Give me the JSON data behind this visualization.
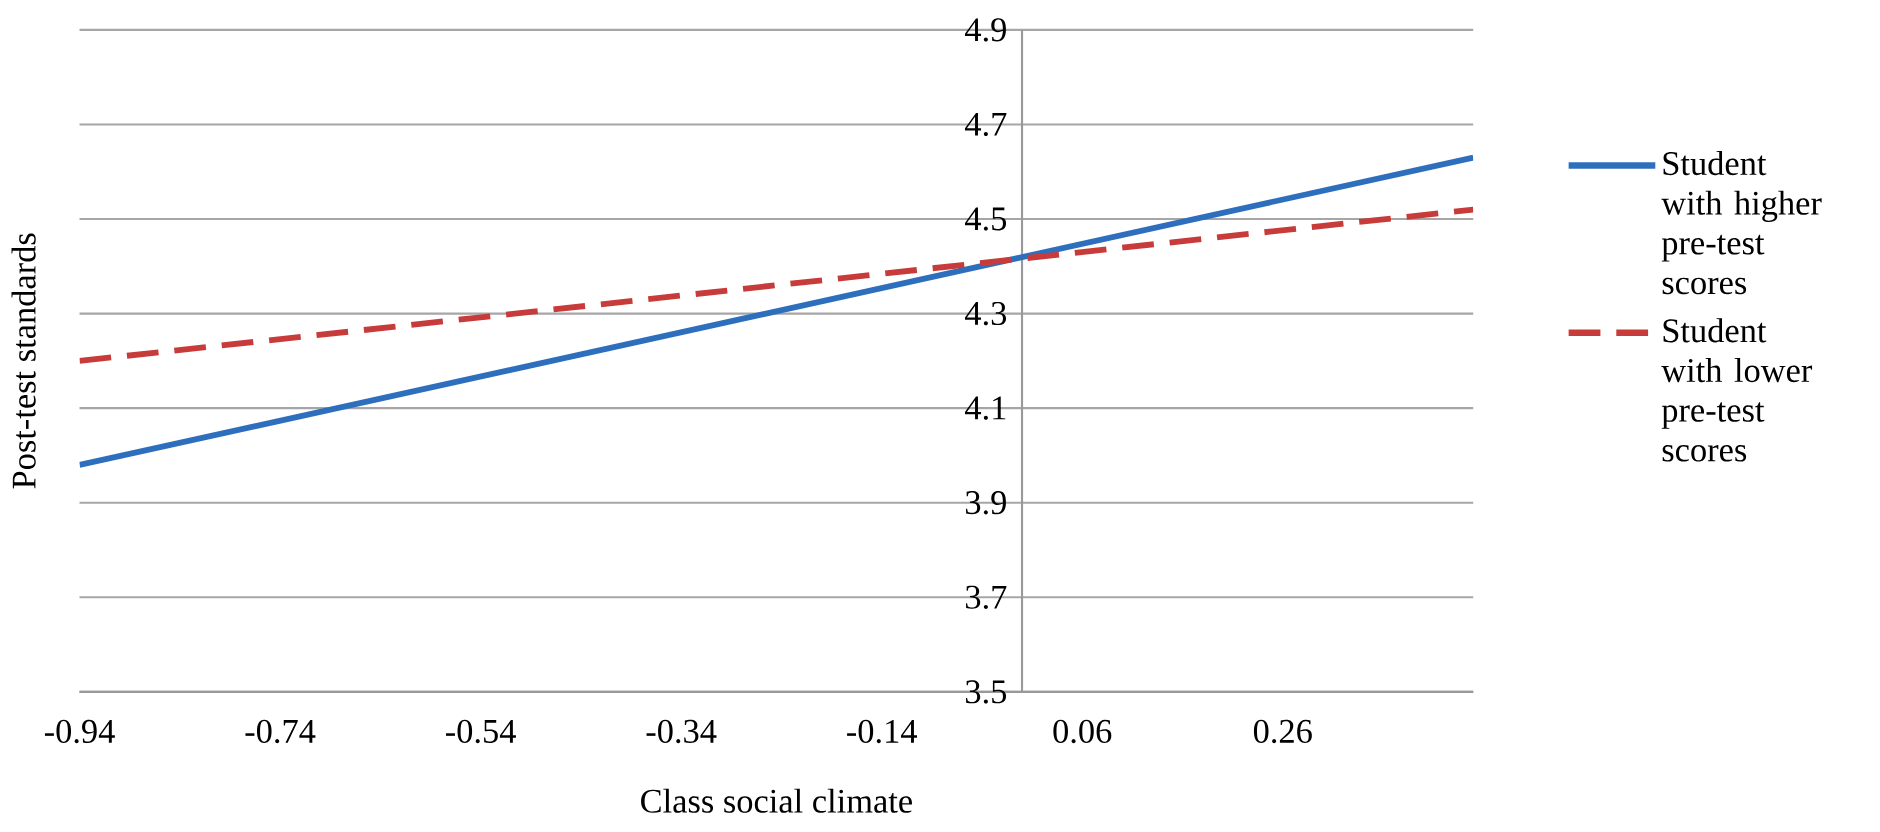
{
  "chart_data": {
    "type": "line",
    "xlabel": "Class social climate",
    "ylabel": "Post-test standards",
    "xlim": [
      -0.94,
      0.45
    ],
    "ylim": [
      3.5,
      4.9
    ],
    "xticks": [
      -0.94,
      -0.74,
      -0.54,
      -0.34,
      -0.14,
      0.06,
      0.26
    ],
    "yticks": [
      3.5,
      3.7,
      3.9,
      4.1,
      4.3,
      4.5,
      4.7,
      4.9
    ],
    "grid": "y",
    "legend": "right",
    "x": [
      -0.94,
      0.45
    ],
    "series": [
      {
        "name": "Student with higher pre-test scores",
        "color": "#2e6fbd",
        "values": [
          3.98,
          4.63
        ],
        "line_style": "solid"
      },
      {
        "name": "Student with lower pre-test scores",
        "color": "#c83b3b",
        "values": [
          4.2,
          4.52
        ],
        "line_style": "dashed"
      }
    ]
  }
}
